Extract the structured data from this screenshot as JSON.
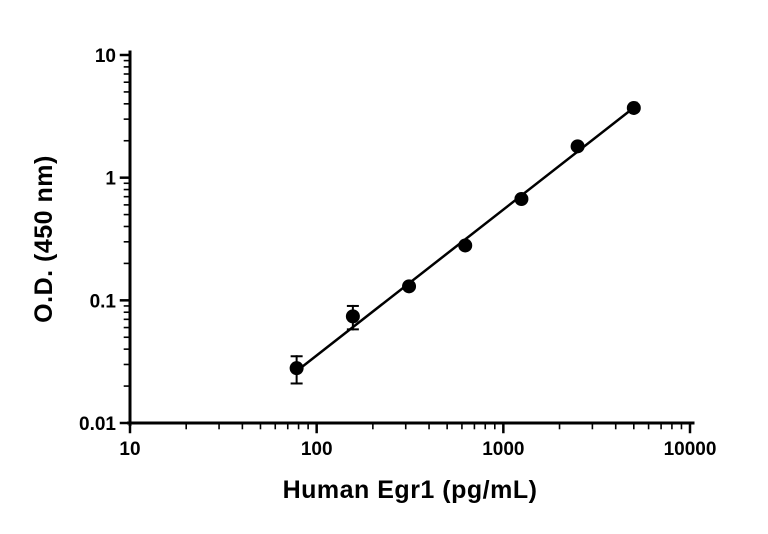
{
  "figure": {
    "background": "#ffffff"
  },
  "chart_data": {
    "type": "scatter",
    "title": "",
    "xlabel": "Human Egr1 (pg/mL)",
    "ylabel": "O.D. (450 nm)",
    "xscale": "log",
    "yscale": "log",
    "xlim": [
      10,
      10000
    ],
    "ylim": [
      0.01,
      10
    ],
    "grid": false,
    "legend": "none",
    "marker_color": "#000000",
    "line_color": "#000000",
    "x_ticks": [
      {
        "value": 10,
        "label": "10"
      },
      {
        "value": 100,
        "label": "100"
      },
      {
        "value": 1000,
        "label": "1000"
      },
      {
        "value": 10000,
        "label": "10000"
      }
    ],
    "y_ticks": [
      {
        "value": 10,
        "label": "10"
      },
      {
        "value": 1,
        "label": "1"
      },
      {
        "value": 0.1,
        "label": "0.1"
      },
      {
        "value": 0.01,
        "label": "0.01"
      }
    ],
    "points": [
      {
        "x": 78.1,
        "y": 0.028,
        "err": 0.007
      },
      {
        "x": 156.3,
        "y": 0.074,
        "err": 0.016
      },
      {
        "x": 312.5,
        "y": 0.13,
        "err": 0.004
      },
      {
        "x": 625,
        "y": 0.28,
        "err": 0.006
      },
      {
        "x": 1250,
        "y": 0.67,
        "err": 0.012
      },
      {
        "x": 2500,
        "y": 1.8,
        "err": 0.03
      },
      {
        "x": 5000,
        "y": 3.7,
        "err": 0.06
      }
    ],
    "trendline": {
      "x1": 78.1,
      "y1": 0.0265,
      "x2": 5000,
      "y2": 3.72
    }
  }
}
